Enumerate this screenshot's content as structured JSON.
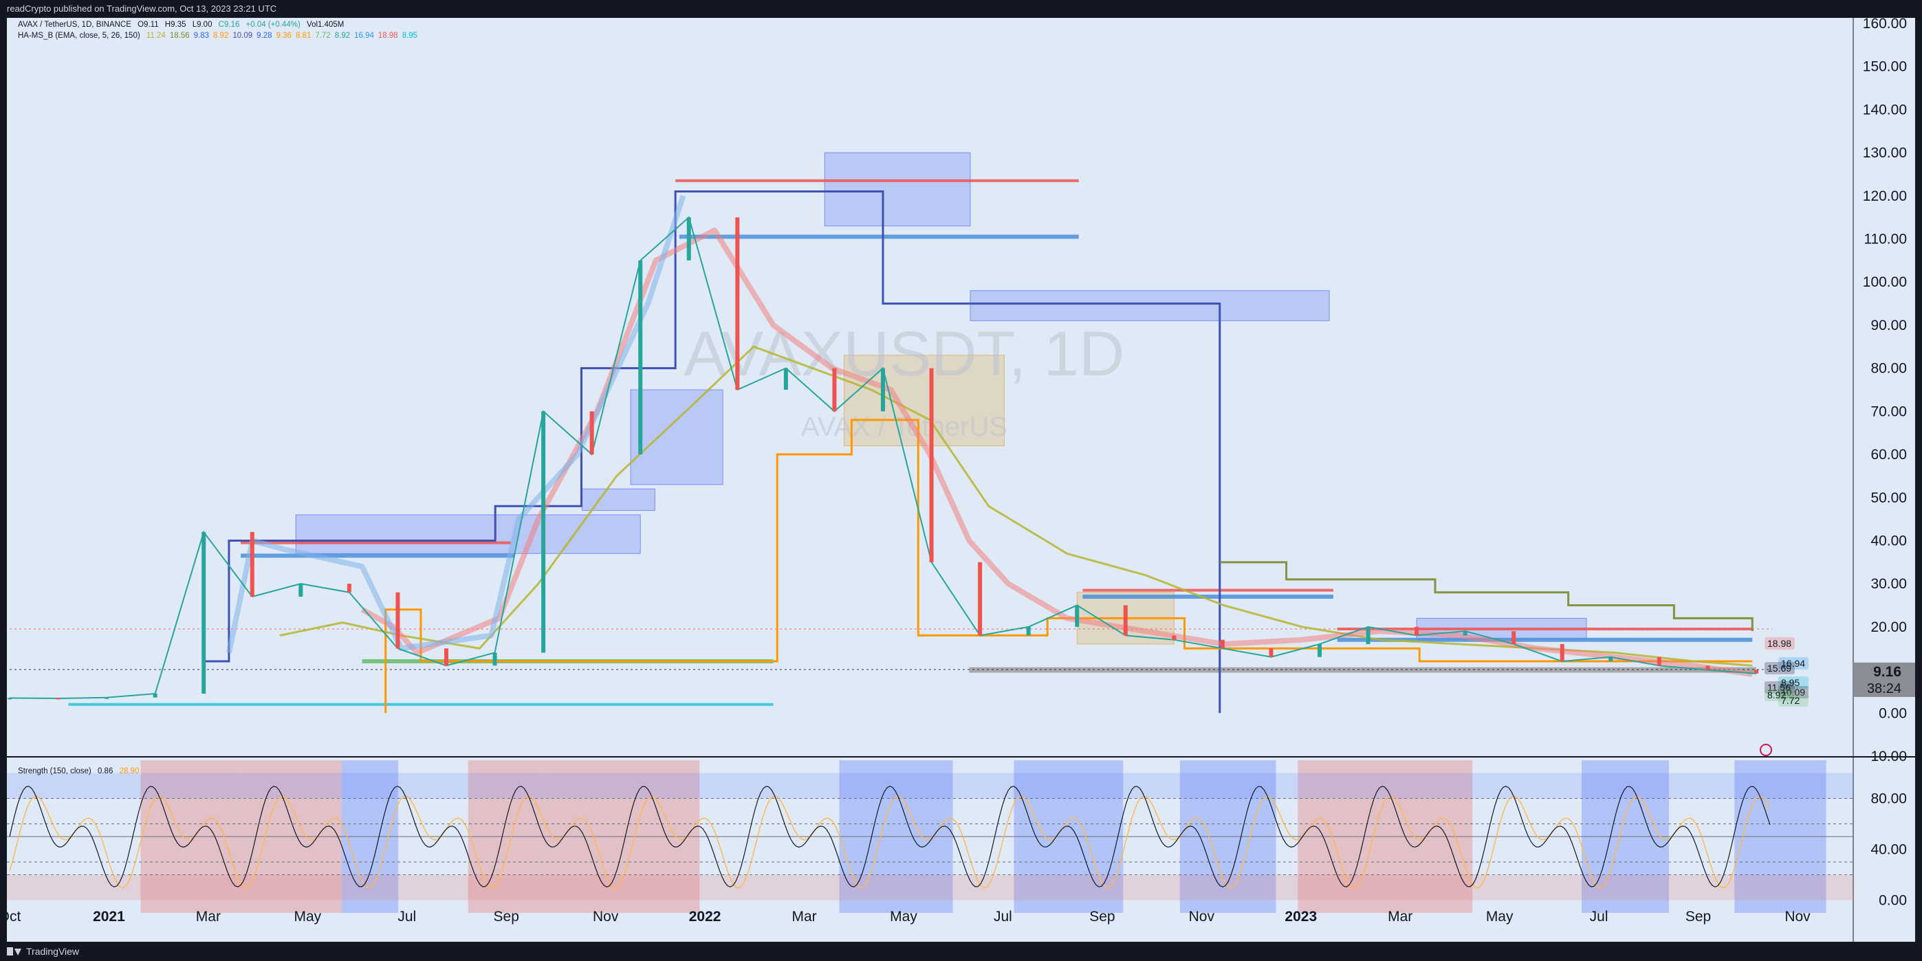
{
  "header": {
    "published_text": "readCrypto published on TradingView.com, Oct 13, 2023 23:21 UTC"
  },
  "footer": {
    "brand": "TradingView"
  },
  "colors": {
    "background": "#dfeaf6",
    "frame": "#131722",
    "up": "#26a69a",
    "down": "#ef5350"
  },
  "legend_main": {
    "symbol": "AVAX / TetherUS, 1D, BINANCE",
    "open": "O9.11",
    "high": "H9.35",
    "low": "L9.00",
    "close": "C9.16",
    "change": "+0.04 (+0.44%)",
    "volume": "Vol1.405M"
  },
  "legend_indicator": {
    "name": "HA-MS_B (EMA, close, 5, 26, 150)",
    "values": [
      {
        "text": "11.24",
        "color": "#b5b52f"
      },
      {
        "text": "18.56",
        "color": "#7b8a2e"
      },
      {
        "text": "9.83",
        "color": "#2962ff"
      },
      {
        "text": "8.92",
        "color": "#ff9800"
      },
      {
        "text": "10.09",
        "color": "#3f51b5"
      },
      {
        "text": "9.28",
        "color": "#2962ff"
      },
      {
        "text": "9.36",
        "color": "#ff9800"
      },
      {
        "text": "8.81",
        "color": "#ff9800"
      },
      {
        "text": "7.72",
        "color": "#66bb6a"
      },
      {
        "text": "8.92",
        "color": "#26a69a"
      },
      {
        "text": "16.94",
        "color": "#2196f3"
      },
      {
        "text": "18.98",
        "color": "#ef5350"
      },
      {
        "text": "8.95",
        "color": "#00bcd4"
      }
    ]
  },
  "legend_strength": {
    "name": "Strength (150, close)",
    "v1": "0.86",
    "v1_color": "#131722",
    "v2": "28.90",
    "v2_color": "#ff9800"
  },
  "watermark": {
    "symbol": "AVAXUSDT, 1D",
    "name": "AVAX / TetherUS"
  },
  "chart_data": [
    {
      "type": "line",
      "title": "AVAX / TetherUS, 1D, BINANCE",
      "x": [
        "2020-10",
        "2020-11",
        "2020-12",
        "2021-01",
        "2021-02",
        "2021-03",
        "2021-04",
        "2021-05",
        "2021-06",
        "2021-07",
        "2021-08",
        "2021-09",
        "2021-10",
        "2021-11",
        "2021-12",
        "2022-01",
        "2022-02",
        "2022-03",
        "2022-04",
        "2022-05",
        "2022-06",
        "2022-07",
        "2022-08",
        "2022-09",
        "2022-10",
        "2022-11",
        "2022-12",
        "2023-01",
        "2023-02",
        "2023-03",
        "2023-04",
        "2023-05",
        "2023-06",
        "2023-07",
        "2023-08",
        "2023-09",
        "2023-10"
      ],
      "series": [
        {
          "values": [
            3.5,
            3.4,
            3.6,
            4.5,
            42,
            27,
            30,
            28,
            15,
            11,
            14,
            70,
            60,
            105,
            115,
            75,
            80,
            70,
            80,
            35,
            18,
            20,
            25,
            18,
            17,
            15,
            13,
            16,
            20,
            18,
            19,
            16,
            12,
            13,
            11,
            10,
            9.16
          ]
        }
      ],
      "x_tick_labels": [
        "Oct",
        "2021",
        "Mar",
        "May",
        "Jul",
        "Sep",
        "Nov",
        "2022",
        "Mar",
        "May",
        "Jul",
        "Sep",
        "Nov",
        "2023",
        "Mar",
        "May",
        "Jul",
        "Sep",
        "Nov"
      ],
      "y_tick_labels": [
        "160.00",
        "150.00",
        "140.00",
        "130.00",
        "120.00",
        "110.00",
        "100.00",
        "90.00",
        "80.00",
        "70.00",
        "60.00",
        "50.00",
        "40.00",
        "30.00",
        "20.00",
        "10.00",
        "0.00",
        "-10.00"
      ],
      "ylim": [
        -10,
        160
      ],
      "annotations": [
        {
          "text": "18.98",
          "color": "#ef5350"
        },
        {
          "text": "16.94",
          "color": "#2196f3"
        },
        {
          "text": "15.69",
          "color": "#131722"
        },
        {
          "text": "8.95",
          "color": "#00bcd4"
        },
        {
          "text": "11.56",
          "color": "#131722"
        },
        {
          "text": "10.09",
          "color": "#131722"
        },
        {
          "text": "8.92",
          "color": "#66bb6a"
        },
        {
          "text": "7.72",
          "color": "#66bb6a"
        }
      ],
      "last_price": "9.16",
      "countdown": "38:24",
      "grid": false
    },
    {
      "type": "line",
      "title": "Strength (150, close)",
      "y_tick_labels": [
        "80.00",
        "40.00",
        "0.00"
      ],
      "ylim": [
        -10,
        110
      ],
      "levels": [
        80,
        60,
        50,
        30,
        20
      ]
    }
  ]
}
